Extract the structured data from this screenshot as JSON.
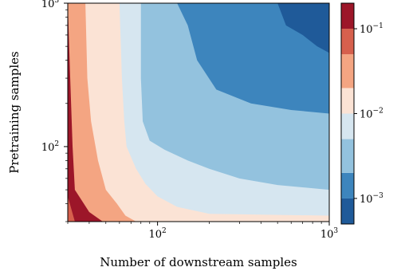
{
  "chart_data": {
    "type": "contourf",
    "xlabel": "Number of downstream samples",
    "ylabel": "Pretraining samples",
    "x_scale": "log",
    "y_scale": "log",
    "xlim": [
      30,
      1000
    ],
    "ylim": [
      30,
      1000
    ],
    "x_ticks": [
      {
        "value": 100,
        "base": "10",
        "exp": "2"
      },
      {
        "value": 1000,
        "base": "10",
        "exp": "3"
      }
    ],
    "y_ticks": [
      {
        "value": 100,
        "base": "10",
        "exp": "2"
      },
      {
        "value": 1000,
        "base": "10",
        "exp": "3"
      }
    ],
    "colorbar": {
      "scale": "log",
      "range": [
        0.0005,
        0.2
      ],
      "boundaries": [
        0.0005,
        0.001,
        0.002,
        0.005,
        0.01,
        0.02,
        0.05,
        0.1,
        0.2
      ],
      "colors": [
        "#1f5a99",
        "#3d85bd",
        "#93c2de",
        "#d6e6f0",
        "#fbe3d5",
        "#f4a582",
        "#d6604d",
        "#9c1629"
      ],
      "ticks": [
        {
          "value": 0.1,
          "base": "10",
          "exp": "−1"
        },
        {
          "value": 0.01,
          "base": "10",
          "exp": "−2"
        },
        {
          "value": 0.001,
          "base": "10",
          "exp": "−3"
        }
      ]
    },
    "regions": [
      {
        "level": 5,
        "boundary": [
          [
            30,
            1000
          ],
          [
            31,
            300
          ],
          [
            32,
            100
          ],
          [
            33,
            50
          ],
          [
            40,
            35
          ],
          [
            48,
            30
          ]
        ]
      },
      {
        "level": 4,
        "boundary": [
          [
            38,
            1000
          ],
          [
            39,
            300
          ],
          [
            41,
            150
          ],
          [
            45,
            80
          ],
          [
            50,
            50
          ],
          [
            58,
            40
          ],
          [
            65,
            33
          ],
          [
            75,
            30
          ]
        ]
      },
      {
        "level": 3,
        "boundary": [
          [
            60,
            1000
          ],
          [
            62,
            300
          ],
          [
            64,
            150
          ],
          [
            66,
            100
          ],
          [
            75,
            70
          ],
          [
            85,
            55
          ],
          [
            100,
            45
          ],
          [
            130,
            38
          ],
          [
            200,
            34
          ],
          [
            1000,
            33
          ]
        ]
      },
      {
        "level": 2,
        "boundary": [
          [
            80,
            1000
          ],
          [
            80,
            300
          ],
          [
            82,
            150
          ],
          [
            90,
            110
          ],
          [
            110,
            95
          ],
          [
            150,
            80
          ],
          [
            200,
            70
          ],
          [
            300,
            60
          ],
          [
            500,
            54
          ],
          [
            1000,
            50
          ]
        ]
      },
      {
        "level": 1,
        "boundary": [
          [
            130,
            1000
          ],
          [
            150,
            700
          ],
          [
            170,
            400
          ],
          [
            220,
            250
          ],
          [
            350,
            200
          ],
          [
            600,
            180
          ],
          [
            1000,
            170
          ]
        ]
      },
      {
        "level": 0,
        "boundary": [
          [
            500,
            1000
          ],
          [
            560,
            700
          ],
          [
            700,
            600
          ],
          [
            850,
            500
          ],
          [
            1000,
            450
          ]
        ]
      }
    ],
    "corner_region": {
      "level": 6,
      "points": [
        [
          30,
          45
        ],
        [
          33,
          30
        ],
        [
          30,
          30
        ]
      ]
    },
    "grid": false
  }
}
